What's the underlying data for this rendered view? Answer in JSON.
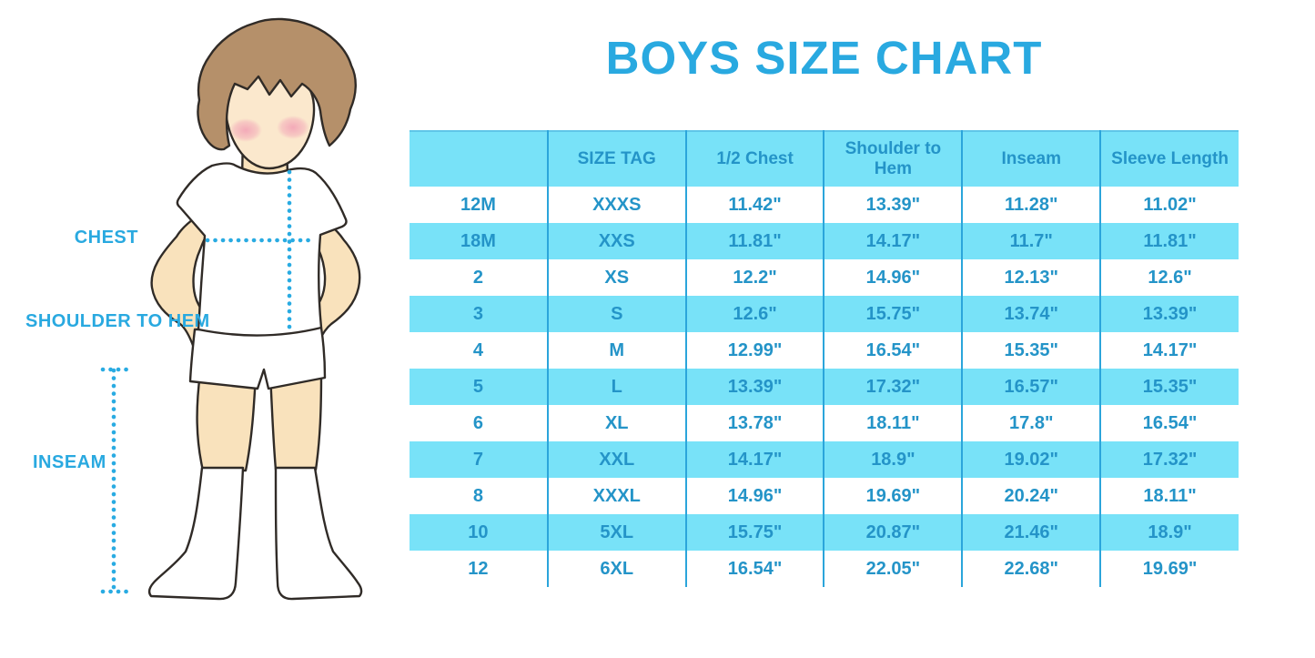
{
  "title": "BOYS SIZE CHART",
  "figure": {
    "labels": {
      "chest": "CHEST",
      "shoulder_to_hem": "SHOULDER TO HEM",
      "inseam": "INSEAM"
    }
  },
  "colors": {
    "accent": "#29A9E0",
    "band": "#78E2F8",
    "table_text": "#2494C8",
    "divider": "#2BA5DB",
    "guide": "#29ABE2",
    "hair": "#B5906A",
    "skin": "#F9E2BC",
    "skin_face": "#FBE8CD",
    "blush": "#F2A3B6",
    "outline": "#302B27",
    "garment": "#FFFFFF"
  },
  "chart_data": {
    "type": "table",
    "title": "BOYS SIZE CHART",
    "columns": [
      "",
      "SIZE TAG",
      "1/2 Chest",
      "Shoulder to Hem",
      "Inseam",
      "Sleeve Length"
    ],
    "rows": [
      [
        "12M",
        "XXXS",
        "11.42\"",
        "13.39\"",
        "11.28\"",
        "11.02\""
      ],
      [
        "18M",
        "XXS",
        "11.81\"",
        "14.17\"",
        "11.7\"",
        "11.81\""
      ],
      [
        "2",
        "XS",
        "12.2\"",
        "14.96\"",
        "12.13\"",
        "12.6\""
      ],
      [
        "3",
        "S",
        "12.6\"",
        "15.75\"",
        "13.74\"",
        "13.39\""
      ],
      [
        "4",
        "M",
        "12.99\"",
        "16.54\"",
        "15.35\"",
        "14.17\""
      ],
      [
        "5",
        "L",
        "13.39\"",
        "17.32\"",
        "16.57\"",
        "15.35\""
      ],
      [
        "6",
        "XL",
        "13.78\"",
        "18.11\"",
        "17.8\"",
        "16.54\""
      ],
      [
        "7",
        "XXL",
        "14.17\"",
        "18.9\"",
        "19.02\"",
        "17.32\""
      ],
      [
        "8",
        "XXXL",
        "14.96\"",
        "19.69\"",
        "20.24\"",
        "18.11\""
      ],
      [
        "10",
        "5XL",
        "15.75\"",
        "20.87\"",
        "21.46\"",
        "18.9\""
      ],
      [
        "12",
        "6XL",
        "16.54\"",
        "22.05\"",
        "22.68\"",
        "19.69\""
      ]
    ],
    "style": {
      "header_background": "#78E2F8",
      "alternating_row_background": "#78E2F8",
      "row_background": "#FFFFFF",
      "text_color": "#2494C8",
      "divider_color": "#2BA5DB"
    }
  }
}
